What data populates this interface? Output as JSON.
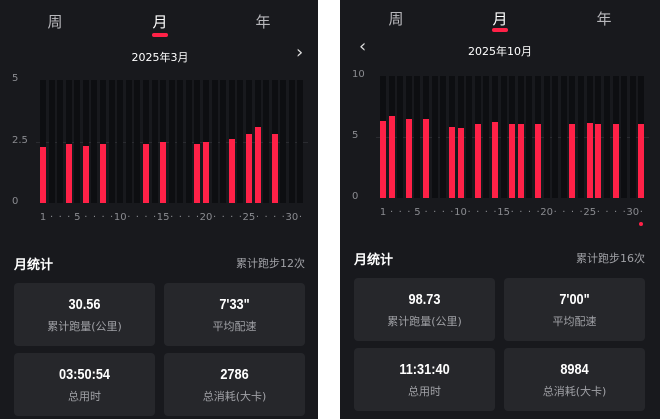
{
  "colors": {
    "accent": "#ff2147",
    "background": "#18191d",
    "card": "#26272b"
  },
  "panels": [
    {
      "tabs": [
        {
          "label": "周"
        },
        {
          "label": "月",
          "active": true
        },
        {
          "label": "年"
        }
      ],
      "date": "2025年3月",
      "prev_icon": null,
      "next_icon": "chevron-right-icon",
      "stats_title": "月统计",
      "run_count": "累计跑步12次",
      "cards": [
        {
          "value": "30.56",
          "label": "累计跑量(公里)"
        },
        {
          "value": "7'33\"",
          "label": "平均配速"
        },
        {
          "value": "03:50:54",
          "label": "总用时"
        },
        {
          "value": "2786",
          "label": "总消耗(大卡)"
        }
      ],
      "chart_data": {
        "type": "bar",
        "ylim": [
          0,
          5
        ],
        "yticks": [
          "0",
          "2.5",
          "5"
        ],
        "ytick_values": [
          0,
          2.5,
          5
        ],
        "days": 31,
        "xtick_labels": {
          "1": "1",
          "5": "5",
          "10": "10",
          "15": "15",
          "20": "20",
          "25": "25",
          "30": "30"
        },
        "values": {
          "1": 2.27,
          "4": 2.4,
          "6": 2.3,
          "8": 2.4,
          "13": 2.4,
          "15": 2.5,
          "19": 2.4,
          "20": 2.5,
          "23": 2.6,
          "25": 2.8,
          "26": 3.1,
          "28": 2.8
        },
        "grid": true
      }
    },
    {
      "tabs": [
        {
          "label": "周"
        },
        {
          "label": "月",
          "active": true
        },
        {
          "label": "年"
        }
      ],
      "date": "2025年10月",
      "prev_icon": "chevron-left-icon",
      "next_icon": null,
      "stats_title": "月统计",
      "run_count": "累计跑步16次",
      "cards": [
        {
          "value": "98.73",
          "label": "累计跑量(公里)"
        },
        {
          "value": "7'00\"",
          "label": "平均配速"
        },
        {
          "value": "11:31:40",
          "label": "总用时"
        },
        {
          "value": "8984",
          "label": "总消耗(大卡)"
        }
      ],
      "chart_data": {
        "type": "bar",
        "ylim": [
          0,
          10
        ],
        "yticks": [
          "0",
          "5",
          "10"
        ],
        "ytick_values": [
          0,
          5,
          10
        ],
        "days": 31,
        "xtick_labels": {
          "1": "1",
          "5": "5",
          "10": "10",
          "15": "15",
          "20": "20",
          "25": "25",
          "30": "30"
        },
        "values": {
          "1": 6.3,
          "2": 6.7,
          "4": 6.5,
          "6": 6.5,
          "9": 5.8,
          "10": 5.7,
          "12": 6.1,
          "14": 6.2,
          "16": 6.1,
          "17": 6.1,
          "19": 6.1,
          "23": 6.1,
          "25": 6.15,
          "26": 6.1,
          "28": 6.1,
          "31": 6.1
        },
        "grid": true,
        "today_marker_day": 31
      }
    }
  ]
}
